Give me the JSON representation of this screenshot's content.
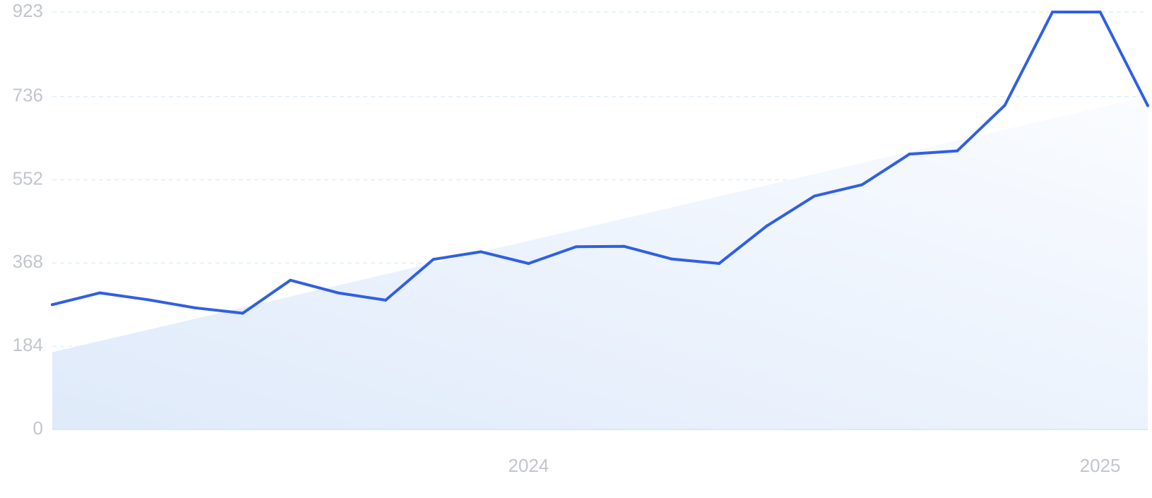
{
  "chart_data": {
    "type": "line",
    "title": "",
    "xlabel": "",
    "ylabel": "",
    "ylim": [
      0,
      923
    ],
    "xlim": [
      "2023-03",
      "2025-02"
    ],
    "yticks": [
      0,
      184,
      368,
      552,
      736,
      923
    ],
    "yticklabels": [
      "0",
      "184",
      "368",
      "552",
      "736",
      "923"
    ],
    "xticks": [
      "2024-01",
      "2025-01"
    ],
    "xticklabels": [
      "2024",
      "2025"
    ],
    "grid": true,
    "legend": "none",
    "series": [
      {
        "x": [
          "2023-03",
          "2023-04",
          "2023-05",
          "2023-06",
          "2023-07",
          "2023-08",
          "2023-09",
          "2023-10",
          "2023-11",
          "2023-12",
          "2024-01",
          "2024-02",
          "2024-03",
          "2024-04",
          "2024-05",
          "2024-06",
          "2024-07",
          "2024-08",
          "2024-09",
          "2024-10",
          "2024-11",
          "2024-12",
          "2025-01",
          "2025-02"
        ],
        "values": [
          276,
          302,
          287,
          269,
          257,
          330,
          302,
          286,
          376,
          393,
          367,
          404,
          405,
          377,
          367,
          450,
          516,
          541,
          609,
          616,
          717,
          923,
          923,
          716
        ]
      }
    ],
    "trend": {
      "x": [
        "2023-03",
        "2025-02"
      ],
      "values": [
        171,
        737
      ]
    },
    "colors": {
      "line": "#2f5fe3",
      "area_start": "#dfeafa",
      "area_end": "#fafcff",
      "grid": "#d7edf3",
      "baseline": "#cfe6f3",
      "tick_text": "#c2c6cc"
    }
  }
}
